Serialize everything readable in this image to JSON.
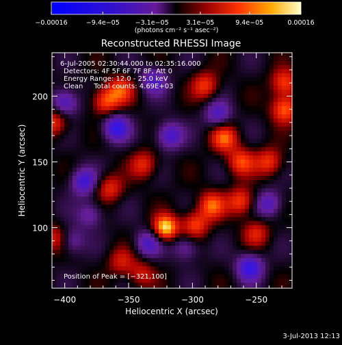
{
  "chart_data": {
    "type": "heatmap",
    "title": "Reconstructed RHESSI Image",
    "xlabel": "Heliocentric X (arcsec)",
    "ylabel": "Heliocentric Y (arcsec)",
    "xlim": [
      -410,
      -222
    ],
    "ylim": [
      54,
      233
    ],
    "x_ticks": [
      -400,
      -350,
      -300,
      -250
    ],
    "y_ticks": [
      100,
      150,
      200
    ],
    "x_tick_labels": [
      "−400",
      "−350",
      "−300",
      "−250"
    ],
    "y_tick_labels": [
      "100",
      "150",
      "200"
    ],
    "colorbar": {
      "range": [
        -0.00016,
        0.00016
      ],
      "ticks": [
        -0.00016,
        -9.4e-05,
        -3.1e-05,
        3.1e-05,
        9.4e-05,
        0.00016
      ],
      "tick_labels": [
        "−0.00016",
        "−9.4e−05",
        "−3.1e−05",
        "3.1e−05",
        "9.4e−05",
        "0.00016"
      ],
      "unit_label": "(photons cm⁻² s⁻¹ asec⁻²)"
    },
    "annotations": [
      "6-Jul-2005 02:30:44.000 to 02:35:16.000",
      "Detectors: 4F 5F 6F 7F 8F, Att 0",
      "Energy Range: 12.0 - 25.0 keV",
      "Clean     Total counts: 4.69E+03"
    ],
    "peak_label": "Position of Peak = [−321,100]",
    "peak": {
      "x": -321,
      "y": 100
    },
    "features": [
      {
        "x": -321,
        "y": 100,
        "v": 1.0
      },
      {
        "x": -298,
        "y": 102,
        "v": 0.6
      },
      {
        "x": -285,
        "y": 117,
        "v": 0.65
      },
      {
        "x": -262,
        "y": 120,
        "v": 0.6
      },
      {
        "x": -262,
        "y": 150,
        "v": 0.6
      },
      {
        "x": -275,
        "y": 168,
        "v": 0.65
      },
      {
        "x": -240,
        "y": 150,
        "v": 0.55
      },
      {
        "x": -228,
        "y": 190,
        "v": 0.7
      },
      {
        "x": -228,
        "y": 210,
        "v": 0.6
      },
      {
        "x": -290,
        "y": 208,
        "v": 0.55
      },
      {
        "x": -368,
        "y": 196,
        "v": 0.65
      },
      {
        "x": -356,
        "y": 205,
        "v": 0.55
      },
      {
        "x": -408,
        "y": 180,
        "v": 0.55
      },
      {
        "x": -365,
        "y": 130,
        "v": 0.5
      },
      {
        "x": -338,
        "y": 148,
        "v": 0.5
      },
      {
        "x": -408,
        "y": 92,
        "v": 0.45
      },
      {
        "x": -356,
        "y": 74,
        "v": 0.4
      },
      {
        "x": -340,
        "y": 65,
        "v": 0.4
      },
      {
        "x": -250,
        "y": 96,
        "v": 0.45
      },
      {
        "x": -385,
        "y": 135,
        "v": -0.6
      },
      {
        "x": -360,
        "y": 176,
        "v": -0.7
      },
      {
        "x": -400,
        "y": 195,
        "v": -0.6
      },
      {
        "x": -318,
        "y": 170,
        "v": -0.6
      },
      {
        "x": -330,
        "y": 212,
        "v": -0.5
      },
      {
        "x": -280,
        "y": 186,
        "v": -0.5
      },
      {
        "x": -335,
        "y": 88,
        "v": -0.5
      },
      {
        "x": -305,
        "y": 85,
        "v": -0.4
      },
      {
        "x": -255,
        "y": 70,
        "v": -0.7
      },
      {
        "x": -240,
        "y": 118,
        "v": -0.5
      },
      {
        "x": -395,
        "y": 90,
        "v": -0.4
      },
      {
        "x": -380,
        "y": 110,
        "v": -0.4
      }
    ]
  },
  "footer": {
    "timestamp": "3-Jul-2013 12:13"
  },
  "colors": {
    "background": "#000000",
    "axis": "#ffffff"
  }
}
